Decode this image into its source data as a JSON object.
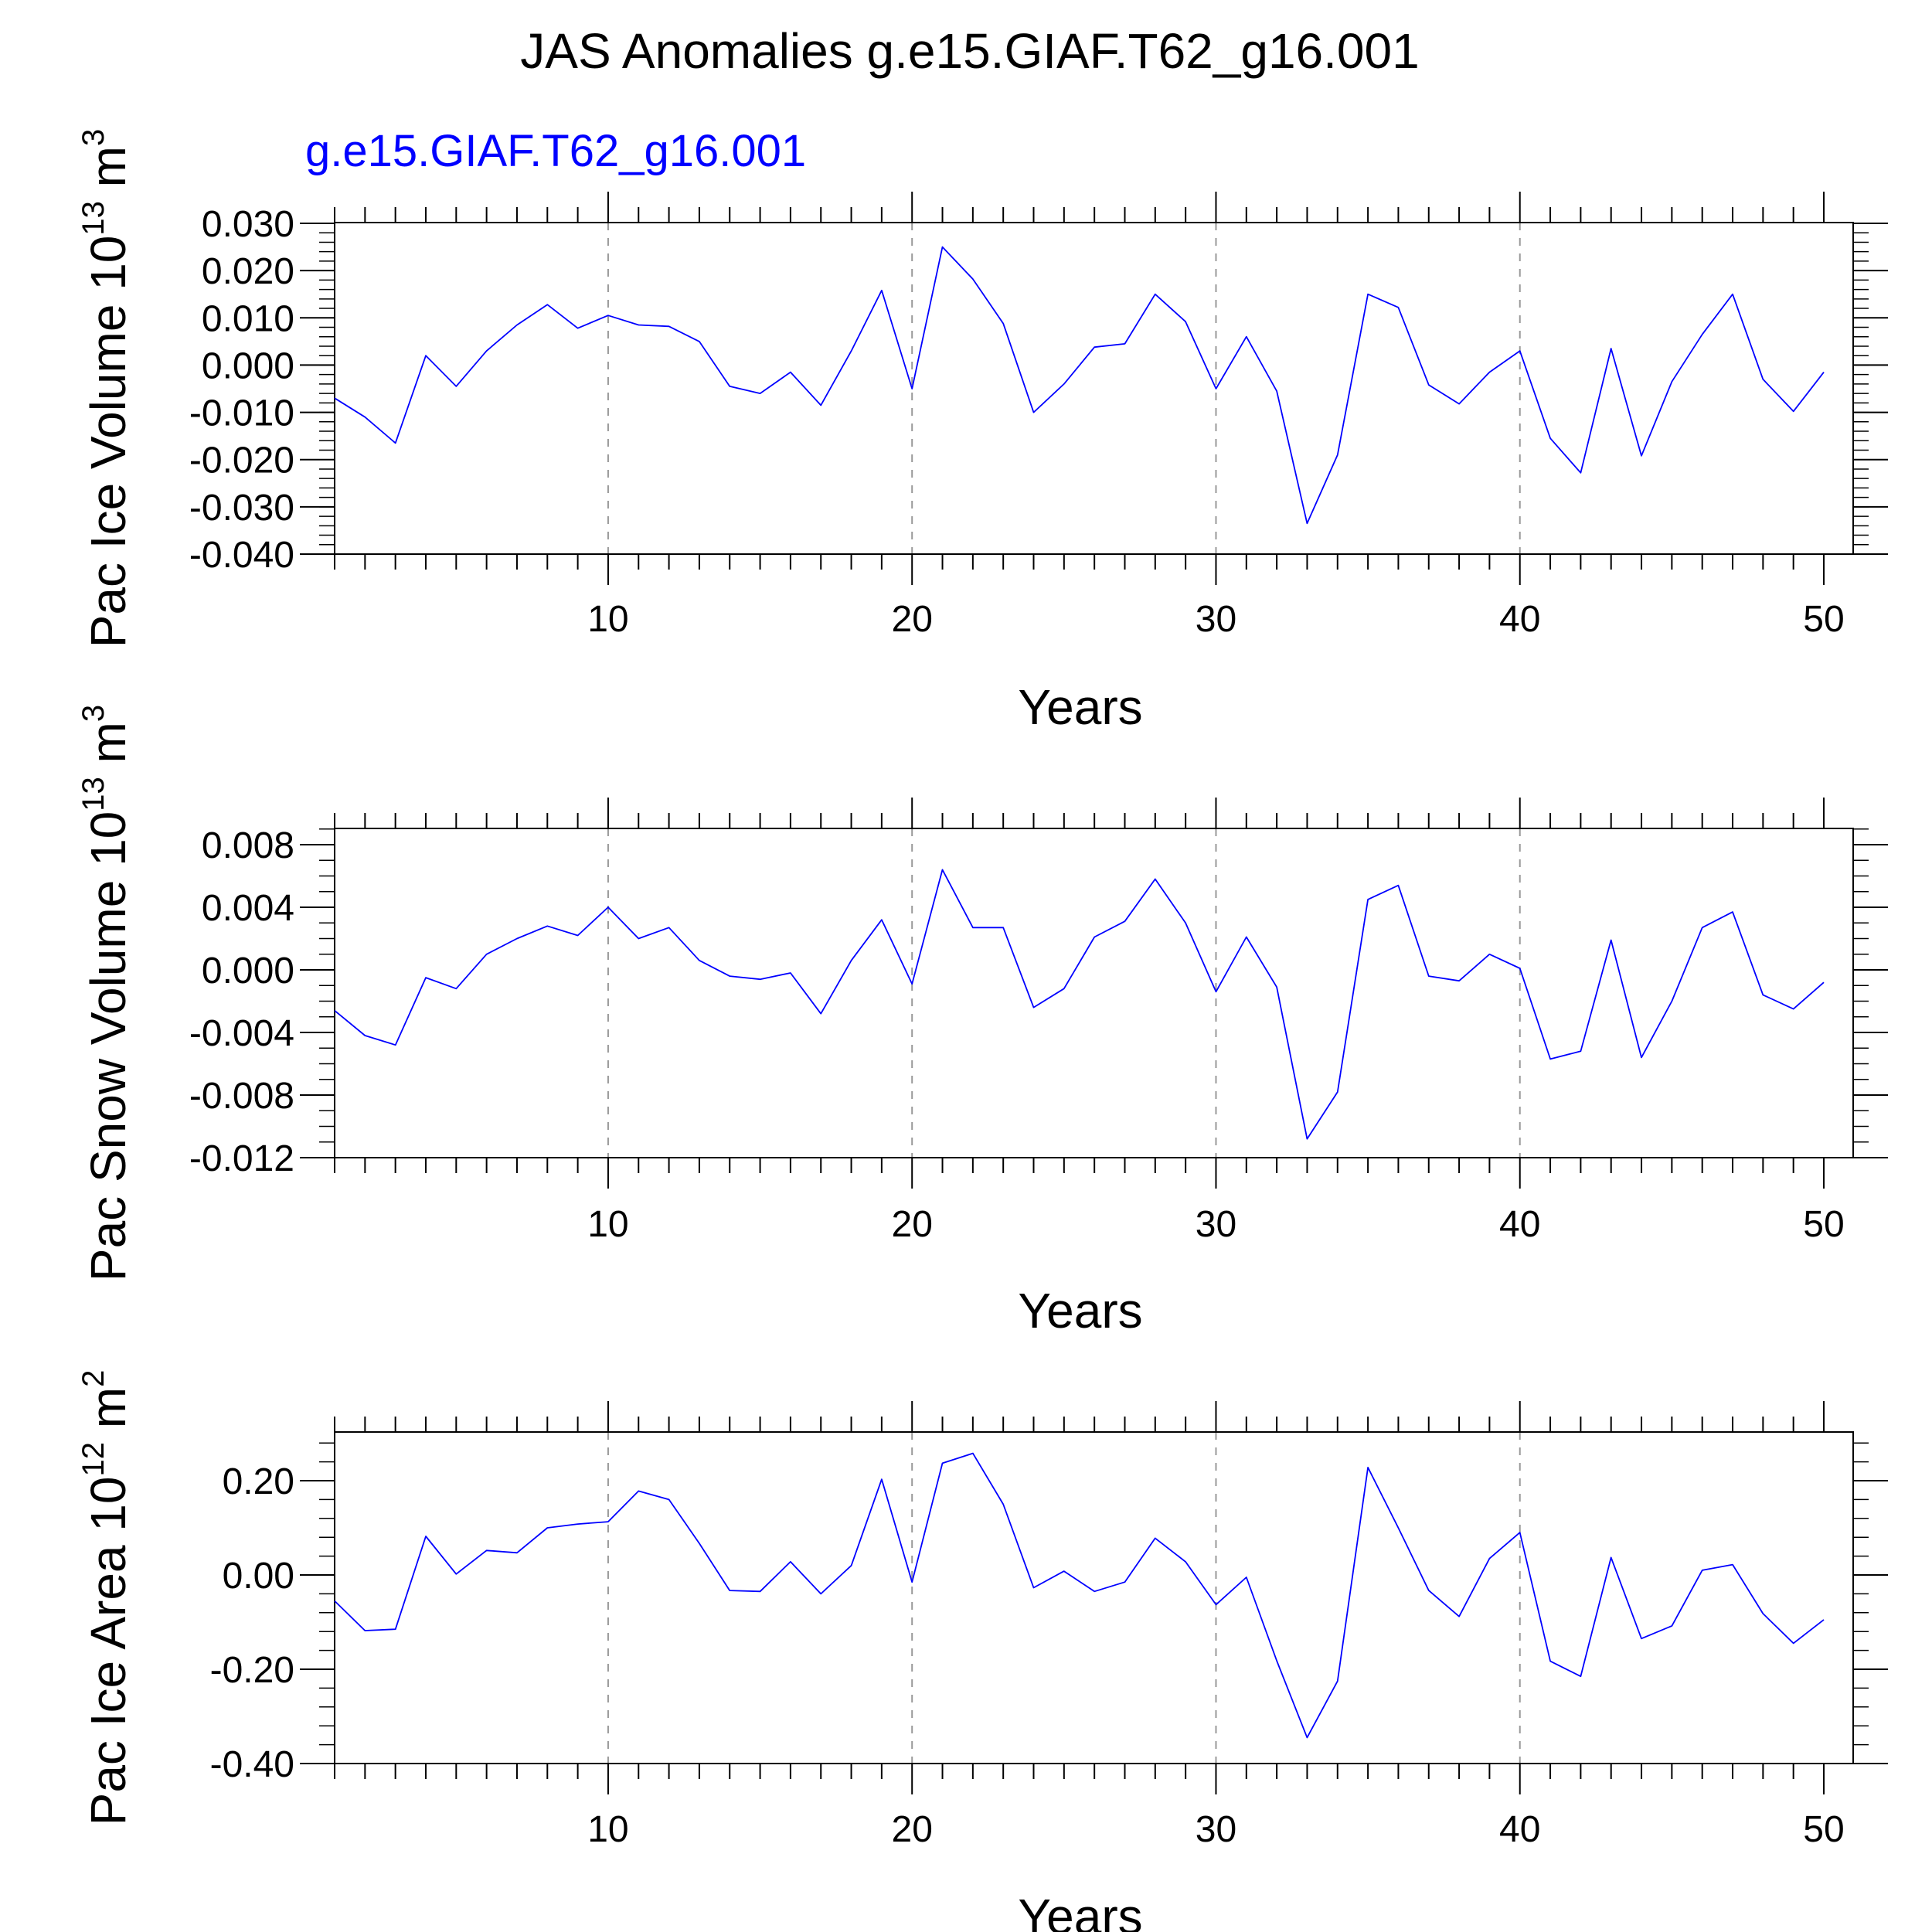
{
  "title": "JAS Anomalies g.e15.GIAF.T62_g16.001",
  "case_label": "g.e15.GIAF.T62_g16.001",
  "colors": {
    "series": "#0000ff",
    "grid": "#999999",
    "axis": "#000000",
    "case_label": "#0000ff"
  },
  "chart_data": [
    {
      "type": "line",
      "ylabel_main": "Pac Ice Volume 10",
      "ylabel_exp": "13",
      "ylabel_unit": "m",
      "ylabel_unit_exp": "3",
      "xlabel": "Years",
      "xlim": [
        1,
        50
      ],
      "ylim": [
        -0.04,
        0.03
      ],
      "yticks": [
        0.03,
        0.02,
        0.01,
        0.0,
        -0.01,
        -0.02,
        -0.03,
        -0.04
      ],
      "ytick_labels": [
        "0.030",
        "0.020",
        "0.010",
        "0.000",
        "-0.010",
        "-0.020",
        "-0.030",
        "-0.040"
      ],
      "yminor_step": 0.002,
      "xticks": [
        10,
        20,
        30,
        40,
        50
      ],
      "xtick_labels": [
        "10",
        "20",
        "30",
        "40",
        "50"
      ],
      "vgrid": [
        10,
        20,
        30,
        40
      ],
      "x": [
        1,
        2,
        3,
        4,
        5,
        6,
        7,
        8,
        9,
        10,
        11,
        12,
        13,
        14,
        15,
        16,
        17,
        18,
        19,
        20,
        21,
        22,
        23,
        24,
        25,
        26,
        27,
        28,
        29,
        30,
        31,
        32,
        33,
        34,
        35,
        36,
        37,
        38,
        39,
        40,
        41,
        42,
        43,
        44,
        45,
        46,
        47,
        48,
        49,
        50
      ],
      "values": [
        -0.007,
        -0.011,
        -0.0165,
        0.002,
        -0.0045,
        0.003,
        0.0085,
        0.0128,
        0.0078,
        0.0105,
        0.0085,
        0.0082,
        0.005,
        -0.0045,
        -0.006,
        -0.0015,
        -0.0085,
        0.003,
        0.0158,
        -0.005,
        0.025,
        0.0182,
        0.0088,
        -0.01,
        -0.004,
        0.0038,
        0.0045,
        0.015,
        0.0092,
        -0.005,
        0.006,
        -0.0055,
        -0.0335,
        -0.019,
        0.015,
        0.0122,
        -0.0042,
        -0.0082,
        -0.0015,
        0.003,
        -0.0155,
        -0.0228,
        0.0035,
        -0.0192,
        -0.0035,
        0.0065,
        0.015,
        -0.003,
        -0.0098,
        -0.0015
      ]
    },
    {
      "type": "line",
      "ylabel_main": "Pac Snow Volume 10",
      "ylabel_exp": "13",
      "ylabel_unit": "m",
      "ylabel_unit_exp": "3",
      "xlabel": "Years",
      "xlim": [
        1,
        50
      ],
      "ylim": [
        -0.012,
        0.0092
      ],
      "yticks": [
        0.008,
        0.004,
        0.0,
        -0.004,
        -0.008,
        -0.012
      ],
      "ytick_labels": [
        "0.008",
        "0.004",
        "0.000",
        "-0.004",
        "-0.008",
        "-0.012"
      ],
      "yminor_step": 0.001,
      "xticks": [
        10,
        20,
        30,
        40,
        50
      ],
      "xtick_labels": [
        "10",
        "20",
        "30",
        "40",
        "50"
      ],
      "vgrid": [
        10,
        20,
        30,
        40
      ],
      "x": [
        1,
        2,
        3,
        4,
        5,
        6,
        7,
        8,
        9,
        10,
        11,
        12,
        13,
        14,
        15,
        16,
        17,
        18,
        19,
        20,
        21,
        22,
        23,
        24,
        25,
        26,
        27,
        28,
        29,
        30,
        31,
        32,
        33,
        34,
        35,
        36,
        37,
        38,
        39,
        40,
        41,
        42,
        43,
        44,
        45,
        46,
        47,
        48,
        49,
        50
      ],
      "values": [
        -0.0026,
        -0.0042,
        -0.0048,
        -0.0005,
        -0.0012,
        0.001,
        0.002,
        0.0028,
        0.0022,
        0.004,
        0.002,
        0.0027,
        0.0006,
        -0.0004,
        -0.0006,
        -0.0002,
        -0.0028,
        0.0006,
        0.0032,
        -0.0009,
        0.0064,
        0.0027,
        0.0027,
        -0.0024,
        -0.0012,
        0.0021,
        0.0031,
        0.0058,
        0.003,
        -0.0014,
        0.0021,
        -0.0011,
        -0.0108,
        -0.0078,
        0.0045,
        0.0054,
        -0.0004,
        -0.0007,
        0.001,
        0.0001,
        -0.0057,
        -0.0052,
        0.0019,
        -0.0056,
        -0.002,
        0.0027,
        0.0037,
        -0.0016,
        -0.0025,
        -0.0008
      ]
    },
    {
      "type": "line",
      "ylabel_main": "Pac Ice Area 10",
      "ylabel_exp": "12",
      "ylabel_unit": "m",
      "ylabel_unit_exp": "2",
      "xlabel": "Years",
      "xlim": [
        1,
        50
      ],
      "ylim": [
        -0.4,
        0.3
      ],
      "yticks": [
        0.2,
        0.0,
        -0.2,
        -0.4
      ],
      "ytick_labels": [
        "0.20",
        "0.00",
        "-0.20",
        "-0.40"
      ],
      "yminor_step": 0.04,
      "xticks": [
        10,
        20,
        30,
        40,
        50
      ],
      "xtick_labels": [
        "10",
        "20",
        "30",
        "40",
        "50"
      ],
      "vgrid": [
        10,
        20,
        30,
        40
      ],
      "x": [
        1,
        2,
        3,
        4,
        5,
        6,
        7,
        8,
        9,
        10,
        11,
        12,
        13,
        14,
        15,
        16,
        17,
        18,
        19,
        20,
        21,
        22,
        23,
        24,
        25,
        26,
        27,
        28,
        29,
        30,
        31,
        32,
        33,
        34,
        35,
        36,
        37,
        38,
        39,
        40,
        41,
        42,
        43,
        44,
        45,
        46,
        47,
        48,
        49,
        50
      ],
      "values": [
        -0.055,
        -0.118,
        -0.115,
        0.082,
        0.002,
        0.052,
        0.047,
        0.1,
        0.108,
        0.113,
        0.178,
        0.16,
        0.067,
        -0.033,
        -0.035,
        0.028,
        -0.04,
        0.02,
        0.203,
        -0.015,
        0.237,
        0.258,
        0.15,
        -0.027,
        0.008,
        -0.035,
        -0.015,
        0.078,
        0.028,
        -0.063,
        -0.005,
        -0.182,
        -0.345,
        -0.225,
        0.228,
        0.1,
        -0.033,
        -0.088,
        0.035,
        0.09,
        -0.183,
        -0.215,
        0.037,
        -0.135,
        -0.108,
        0.01,
        0.022,
        -0.082,
        -0.145,
        -0.095
      ]
    }
  ]
}
